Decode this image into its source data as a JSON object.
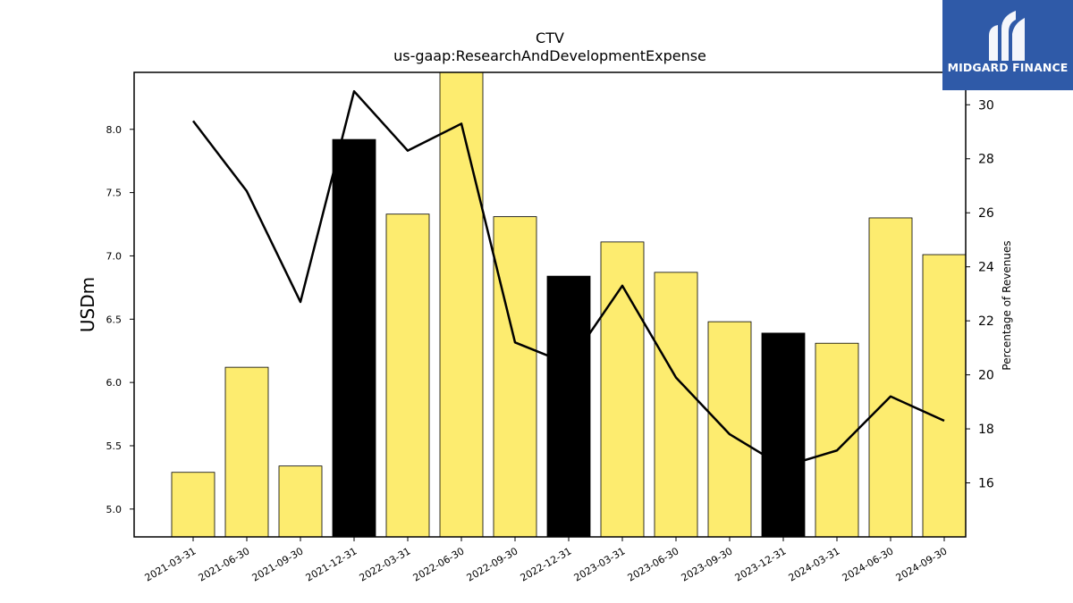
{
  "brand": {
    "name": "MIDGARD FINANCE",
    "colors": {
      "background": "#2f5aa8",
      "text": "#ffffff"
    }
  },
  "chart_data": {
    "type": "bar",
    "title": "CTV",
    "subtitle": "us-gaap:ResearchAndDevelopmentExpense",
    "ylabel": "USDm",
    "y2label": "Percentage of Revenues",
    "ylim": [
      4.78,
      8.45
    ],
    "y2lim": [
      14.0,
      31.2
    ],
    "yticks": [
      5.0,
      5.5,
      6.0,
      6.5,
      7.0,
      7.5,
      8.0
    ],
    "y2ticks": [
      16,
      18,
      20,
      22,
      24,
      26,
      28,
      30
    ],
    "categories": [
      "2021-03-31",
      "2021-06-30",
      "2021-09-30",
      "2021-12-31",
      "2022-03-31",
      "2022-06-30",
      "2022-09-30",
      "2022-12-31",
      "2023-03-31",
      "2023-06-30",
      "2023-09-30",
      "2023-12-31",
      "2024-03-31",
      "2024-06-30",
      "2024-09-30"
    ],
    "series": [
      {
        "type": "bar",
        "axis": "left",
        "values": [
          5.29,
          6.12,
          5.34,
          7.92,
          7.33,
          8.45,
          7.31,
          6.84,
          7.11,
          6.87,
          6.48,
          6.39,
          6.31,
          7.3,
          7.01
        ],
        "colors": [
          "#fdec6f",
          "#fdec6f",
          "#fdec6f",
          "#000000",
          "#fdec6f",
          "#fdec6f",
          "#fdec6f",
          "#000000",
          "#fdec6f",
          "#fdec6f",
          "#fdec6f",
          "#000000",
          "#fdec6f",
          "#fdec6f",
          "#fdec6f"
        ]
      },
      {
        "type": "line",
        "axis": "right",
        "color": "#000000",
        "values": [
          29.4,
          26.8,
          22.7,
          30.5,
          28.3,
          29.3,
          21.2,
          20.4,
          23.3,
          19.9,
          17.8,
          16.6,
          17.2,
          19.2,
          18.3
        ]
      }
    ],
    "grid": false,
    "legend": "none"
  }
}
